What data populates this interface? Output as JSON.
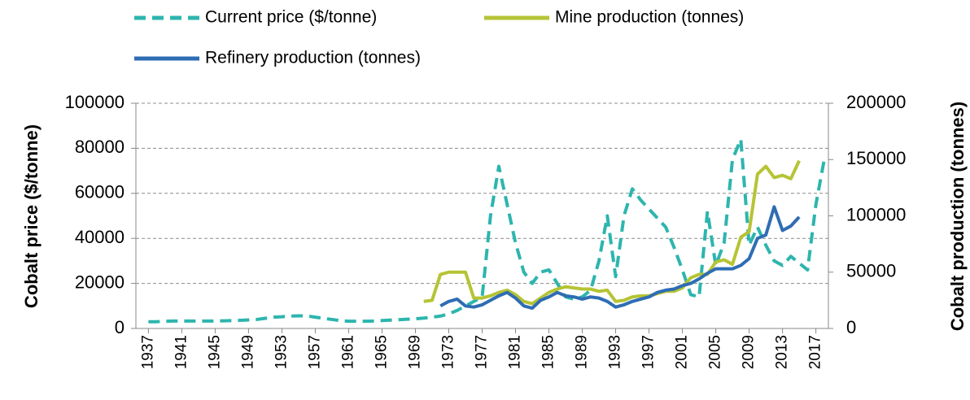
{
  "chart_data": {
    "type": "line",
    "y_label": "Cobalt price ($/tonne)",
    "y2_label": "Cobalt production (tonnes)",
    "x": [
      1937,
      1938,
      1939,
      1940,
      1941,
      1942,
      1943,
      1944,
      1945,
      1946,
      1947,
      1948,
      1949,
      1950,
      1951,
      1952,
      1953,
      1954,
      1955,
      1956,
      1957,
      1958,
      1959,
      1960,
      1961,
      1962,
      1963,
      1964,
      1965,
      1966,
      1967,
      1968,
      1969,
      1970,
      1971,
      1972,
      1973,
      1974,
      1975,
      1976,
      1977,
      1978,
      1979,
      1980,
      1981,
      1982,
      1983,
      1984,
      1985,
      1986,
      1987,
      1988,
      1989,
      1990,
      1991,
      1992,
      1993,
      1994,
      1995,
      1996,
      1997,
      1998,
      1999,
      2000,
      2001,
      2002,
      2003,
      2004,
      2005,
      2006,
      2007,
      2008,
      2009,
      2010,
      2011,
      2012,
      2013,
      2014,
      2015,
      2016,
      2017,
      2018
    ],
    "xlim": [
      1935.5,
      2018.5
    ],
    "xticks": [
      1937,
      1941,
      1945,
      1949,
      1953,
      1957,
      1961,
      1965,
      1969,
      1973,
      1977,
      1981,
      1985,
      1989,
      1993,
      1997,
      2001,
      2005,
      2009,
      2013,
      2017
    ],
    "ylim": [
      0,
      100000
    ],
    "yticks": [
      0,
      20000,
      40000,
      60000,
      80000,
      100000
    ],
    "y2lim": [
      0,
      200000
    ],
    "y2ticks": [
      0,
      50000,
      100000,
      150000,
      200000
    ],
    "grid": true,
    "series": [
      {
        "name": "Current price ($/tonne)",
        "color": "#2db5ae",
        "linestyle": "dashed",
        "values": [
          3000,
          3000,
          3200,
          3300,
          3300,
          3300,
          3300,
          3300,
          3300,
          3400,
          3500,
          3600,
          3800,
          4000,
          4500,
          5000,
          5200,
          5500,
          5600,
          5600,
          5000,
          4500,
          4000,
          3500,
          3200,
          3200,
          3200,
          3300,
          3500,
          3700,
          3900,
          4100,
          4300,
          4600,
          5000,
          5500,
          6500,
          8000,
          10000,
          12000,
          14000,
          50000,
          72000,
          55000,
          38000,
          25000,
          20000,
          25000,
          26000,
          20000,
          14000,
          13000,
          14000,
          17000,
          30000,
          50000,
          23000,
          50000,
          62000,
          57000,
          53000,
          49000,
          45000,
          36000,
          26000,
          15000,
          14000,
          52000,
          28000,
          38000,
          75000,
          84000,
          37000,
          45000,
          37000,
          30000,
          28000,
          32000,
          29000,
          26000,
          55000,
          75000
        ]
      },
      {
        "name": "Mine production (tonnes)",
        "color": "#b5c434",
        "linestyle": "solid",
        "axis": "y2",
        "values": [
          null,
          null,
          null,
          null,
          null,
          null,
          null,
          null,
          null,
          null,
          null,
          null,
          null,
          null,
          null,
          null,
          null,
          null,
          null,
          null,
          null,
          null,
          null,
          null,
          null,
          null,
          null,
          null,
          null,
          null,
          null,
          null,
          null,
          24000,
          25000,
          48000,
          50000,
          50000,
          50000,
          27000,
          27000,
          29000,
          32000,
          34000,
          30000,
          24000,
          22000,
          27000,
          32000,
          35000,
          37000,
          36000,
          35000,
          35000,
          33000,
          34000,
          24000,
          25000,
          28000,
          29000,
          29000,
          31000,
          33000,
          33000,
          36000,
          45000,
          48000,
          48000,
          59000,
          61000,
          57000,
          81000,
          86000,
          137000,
          144000,
          134000,
          136000,
          133000,
          149000,
          null,
          null,
          null
        ]
      },
      {
        "name": "Refinery production (tonnes)",
        "color": "#2e6db4",
        "linestyle": "solid",
        "axis": "y2",
        "values": [
          null,
          null,
          null,
          null,
          null,
          null,
          null,
          null,
          null,
          null,
          null,
          null,
          null,
          null,
          null,
          null,
          null,
          null,
          null,
          null,
          null,
          null,
          null,
          null,
          null,
          null,
          null,
          null,
          null,
          null,
          null,
          null,
          null,
          null,
          null,
          20000,
          24000,
          26000,
          20000,
          19000,
          21000,
          25000,
          29000,
          32000,
          27000,
          20000,
          18000,
          25000,
          28000,
          32000,
          29000,
          28000,
          26000,
          28000,
          27000,
          24000,
          19000,
          21000,
          24000,
          26000,
          28000,
          32000,
          34000,
          35000,
          38000,
          40000,
          44000,
          49000,
          53000,
          53000,
          53000,
          56000,
          62000,
          80000,
          83000,
          108000,
          87000,
          91000,
          99000,
          null,
          null,
          null
        ]
      }
    ]
  }
}
